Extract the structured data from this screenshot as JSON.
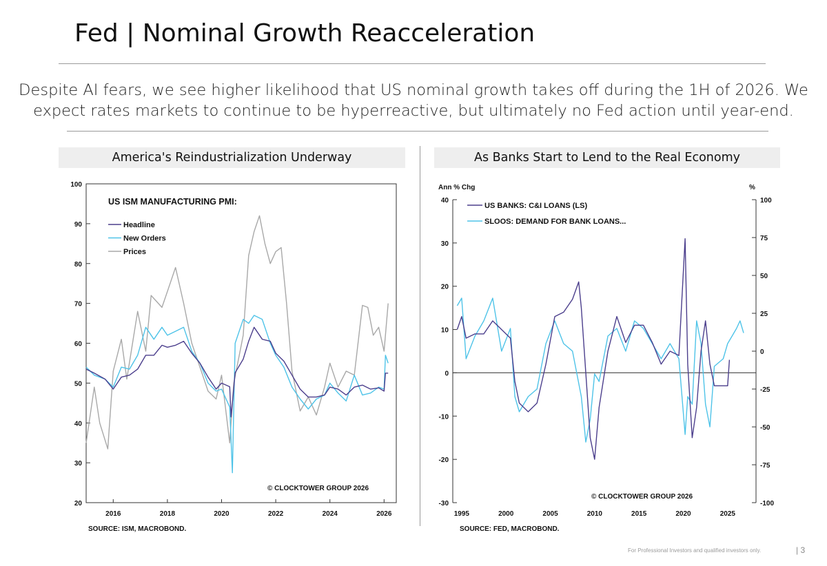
{
  "header": {
    "title": "Fed | Nominal Growth Reacceleration",
    "subtitle_line1": "Despite AI fears, we see higher likelihood that US nominal growth takes off during the 1H of 2026. We",
    "subtitle_line2": "expect rates markets to continue to be hyperreactive, but ultimately no Fed action until year-end."
  },
  "footer": {
    "disclaimer": "For Professional Investors and qualified investors only.",
    "page": "| 3"
  },
  "colors": {
    "headline": "#4b3e8c",
    "new_orders": "#4ec3e8",
    "prices": "#a8a8a8",
    "loans": "#4b3e8c",
    "sloos": "#4ec3e8"
  },
  "chart_data": [
    {
      "type": "line",
      "panel_title": "America's Reindustrialization Underway",
      "title": "US ISM MANUFACTURING PMI:",
      "xticks": [
        "2016",
        "2018",
        "2020",
        "2022",
        "2024",
        "2026"
      ],
      "xlim": [
        2015.0,
        2026.45
      ],
      "yticks": [
        "100",
        "90",
        "80",
        "70",
        "60",
        "50",
        "40",
        "30",
        "20"
      ],
      "ylim": [
        20,
        100
      ],
      "legend_placement": "top-left",
      "credit": "© CLOCKTOWER GROUP 2026",
      "source": "SOURCE: ISM, MACROBOND.",
      "series": [
        {
          "name": "Headline",
          "color": "#4b3e8c",
          "points": [
            [
              2015.0,
              53.5
            ],
            [
              2015.3,
              52.5
            ],
            [
              2015.7,
              51
            ],
            [
              2016.0,
              48.5
            ],
            [
              2016.3,
              51.5
            ],
            [
              2016.6,
              52
            ],
            [
              2016.9,
              53.5
            ],
            [
              2017.2,
              57
            ],
            [
              2017.5,
              57
            ],
            [
              2017.8,
              59.5
            ],
            [
              2018.0,
              59
            ],
            [
              2018.3,
              59.5
            ],
            [
              2018.6,
              60.5
            ],
            [
              2018.9,
              57.5
            ],
            [
              2019.2,
              55
            ],
            [
              2019.5,
              51.5
            ],
            [
              2019.8,
              48.5
            ],
            [
              2020.0,
              50
            ],
            [
              2020.3,
              49.1
            ],
            [
              2020.35,
              41.5
            ],
            [
              2020.5,
              52.6
            ],
            [
              2020.8,
              56
            ],
            [
              2021.0,
              60.5
            ],
            [
              2021.2,
              64
            ],
            [
              2021.5,
              61
            ],
            [
              2021.8,
              60.5
            ],
            [
              2022.0,
              57.5
            ],
            [
              2022.3,
              55.5
            ],
            [
              2022.6,
              52
            ],
            [
              2022.9,
              48.5
            ],
            [
              2023.2,
              46.5
            ],
            [
              2023.5,
              46.5
            ],
            [
              2023.8,
              47
            ],
            [
              2024.0,
              49
            ],
            [
              2024.3,
              48.5
            ],
            [
              2024.6,
              47
            ],
            [
              2024.9,
              49
            ],
            [
              2025.2,
              49.5
            ],
            [
              2025.5,
              48.5
            ],
            [
              2025.8,
              48.8
            ],
            [
              2026.0,
              48
            ],
            [
              2026.05,
              52.5
            ],
            [
              2026.15,
              52.5
            ]
          ]
        },
        {
          "name": "New Orders",
          "color": "#4ec3e8",
          "points": [
            [
              2015.0,
              54
            ],
            [
              2015.3,
              52
            ],
            [
              2015.7,
              51
            ],
            [
              2016.0,
              49
            ],
            [
              2016.3,
              54
            ],
            [
              2016.6,
              53.5
            ],
            [
              2016.9,
              57
            ],
            [
              2017.2,
              64
            ],
            [
              2017.5,
              61
            ],
            [
              2017.8,
              64
            ],
            [
              2018.0,
              62
            ],
            [
              2018.3,
              63
            ],
            [
              2018.6,
              64
            ],
            [
              2018.9,
              58
            ],
            [
              2019.2,
              55
            ],
            [
              2019.5,
              50
            ],
            [
              2019.8,
              48
            ],
            [
              2020.0,
              48.5
            ],
            [
              2020.3,
              44
            ],
            [
              2020.4,
              27.5
            ],
            [
              2020.5,
              60
            ],
            [
              2020.8,
              66
            ],
            [
              2021.0,
              65
            ],
            [
              2021.2,
              67
            ],
            [
              2021.5,
              66
            ],
            [
              2021.8,
              60
            ],
            [
              2022.0,
              57
            ],
            [
              2022.3,
              54
            ],
            [
              2022.6,
              49
            ],
            [
              2022.9,
              46
            ],
            [
              2023.2,
              43.5
            ],
            [
              2023.5,
              46
            ],
            [
              2023.8,
              47
            ],
            [
              2024.0,
              50
            ],
            [
              2024.3,
              47.5
            ],
            [
              2024.6,
              45.5
            ],
            [
              2024.9,
              52
            ],
            [
              2025.2,
              47
            ],
            [
              2025.5,
              47.5
            ],
            [
              2025.8,
              49
            ],
            [
              2026.0,
              48.5
            ],
            [
              2026.05,
              57
            ],
            [
              2026.15,
              55
            ]
          ]
        },
        {
          "name": "Prices",
          "color": "#a8a8a8",
          "points": [
            [
              2015.0,
              35
            ],
            [
              2015.3,
              49
            ],
            [
              2015.5,
              40
            ],
            [
              2015.8,
              33.5
            ],
            [
              2016.0,
              53
            ],
            [
              2016.3,
              61
            ],
            [
              2016.5,
              51
            ],
            [
              2016.9,
              68
            ],
            [
              2017.2,
              58
            ],
            [
              2017.4,
              72
            ],
            [
              2017.8,
              69
            ],
            [
              2018.0,
              73
            ],
            [
              2018.3,
              79
            ],
            [
              2018.6,
              70
            ],
            [
              2018.9,
              60
            ],
            [
              2019.2,
              54
            ],
            [
              2019.5,
              48
            ],
            [
              2019.8,
              46
            ],
            [
              2020.0,
              52
            ],
            [
              2020.3,
              35
            ],
            [
              2020.45,
              50
            ],
            [
              2020.8,
              62
            ],
            [
              2021.0,
              82
            ],
            [
              2021.2,
              88
            ],
            [
              2021.4,
              92
            ],
            [
              2021.6,
              85
            ],
            [
              2021.8,
              80
            ],
            [
              2022.0,
              83
            ],
            [
              2022.2,
              84
            ],
            [
              2022.4,
              70
            ],
            [
              2022.6,
              53
            ],
            [
              2022.9,
              43
            ],
            [
              2023.2,
              46.5
            ],
            [
              2023.5,
              42
            ],
            [
              2023.8,
              49
            ],
            [
              2024.0,
              55
            ],
            [
              2024.3,
              49
            ],
            [
              2024.6,
              53
            ],
            [
              2024.9,
              52
            ],
            [
              2025.2,
              69.5
            ],
            [
              2025.4,
              69
            ],
            [
              2025.6,
              62
            ],
            [
              2025.8,
              64
            ],
            [
              2026.0,
              58
            ],
            [
              2026.15,
              70
            ]
          ]
        }
      ]
    },
    {
      "type": "line",
      "panel_title": "As Banks Start to Lend to the Real Economy",
      "y_left_label": "Ann % Chg",
      "y_right_label": "%",
      "xticks": [
        "1995",
        "2000",
        "2005",
        "2010",
        "2015",
        "2020",
        "2025"
      ],
      "xlim": [
        1994.0,
        2028.2
      ],
      "left_yticks": [
        "40",
        "30",
        "20",
        "10",
        "0",
        "-10",
        "-20",
        "-30"
      ],
      "left_ylim": [
        -30,
        40
      ],
      "right_yticks": [
        "100",
        "75",
        "50",
        "25",
        "0",
        "-25",
        "-50",
        "-75",
        "-100"
      ],
      "right_ylim": [
        -100,
        100
      ],
      "legend_placement": "top-left",
      "credit": "© CLOCKTOWER GROUP 2026",
      "source": "SOURCE: FED, MACROBOND.",
      "series": [
        {
          "name": "US BANKS: C&I LOANS (LS)",
          "color": "#4b3e8c",
          "axis": "left",
          "points": [
            [
              1994.5,
              10
            ],
            [
              1995.0,
              13
            ],
            [
              1995.5,
              8
            ],
            [
              1996.5,
              9
            ],
            [
              1997.5,
              9
            ],
            [
              1998.5,
              12
            ],
            [
              1999.5,
              10
            ],
            [
              2000.5,
              8
            ],
            [
              2001.0,
              -2
            ],
            [
              2001.5,
              -7
            ],
            [
              2002.5,
              -9
            ],
            [
              2003.5,
              -7
            ],
            [
              2004.5,
              2
            ],
            [
              2005.5,
              13
            ],
            [
              2006.5,
              14
            ],
            [
              2007.5,
              17
            ],
            [
              2008.2,
              21
            ],
            [
              2008.5,
              15
            ],
            [
              2009.0,
              0
            ],
            [
              2009.5,
              -15
            ],
            [
              2010.0,
              -20
            ],
            [
              2010.5,
              -8
            ],
            [
              2011.5,
              5
            ],
            [
              2012.5,
              13
            ],
            [
              2013.5,
              7
            ],
            [
              2014.5,
              11
            ],
            [
              2015.5,
              11
            ],
            [
              2016.5,
              7
            ],
            [
              2017.5,
              2
            ],
            [
              2018.5,
              5
            ],
            [
              2019.5,
              4
            ],
            [
              2020.2,
              31
            ],
            [
              2020.5,
              2
            ],
            [
              2021.0,
              -15
            ],
            [
              2021.5,
              -8
            ],
            [
              2022.0,
              5
            ],
            [
              2022.5,
              12
            ],
            [
              2023.0,
              2
            ],
            [
              2023.5,
              -3
            ],
            [
              2024.5,
              -3
            ],
            [
              2025.0,
              -3
            ],
            [
              2025.2,
              3
            ]
          ]
        },
        {
          "name": "SLOOS: DEMAND FOR BANK LOANS...",
          "color": "#4ec3e8",
          "axis": "right",
          "points": [
            [
              1994.5,
              30
            ],
            [
              1995.0,
              35
            ],
            [
              1995.5,
              -5
            ],
            [
              1996.5,
              10
            ],
            [
              1997.5,
              20
            ],
            [
              1998.5,
              35
            ],
            [
              1999.5,
              0
            ],
            [
              2000.5,
              15
            ],
            [
              2001.0,
              -30
            ],
            [
              2001.5,
              -40
            ],
            [
              2002.5,
              -30
            ],
            [
              2003.5,
              -25
            ],
            [
              2004.5,
              5
            ],
            [
              2005.5,
              20
            ],
            [
              2006.5,
              5
            ],
            [
              2007.5,
              0
            ],
            [
              2008.5,
              -30
            ],
            [
              2009.0,
              -60
            ],
            [
              2009.5,
              -45
            ],
            [
              2010.0,
              -15
            ],
            [
              2010.5,
              -20
            ],
            [
              2011.5,
              10
            ],
            [
              2012.5,
              15
            ],
            [
              2013.5,
              0
            ],
            [
              2014.5,
              20
            ],
            [
              2015.5,
              15
            ],
            [
              2016.5,
              5
            ],
            [
              2017.5,
              -5
            ],
            [
              2018.5,
              5
            ],
            [
              2019.5,
              -5
            ],
            [
              2020.2,
              -55
            ],
            [
              2020.5,
              -30
            ],
            [
              2021.0,
              -35
            ],
            [
              2021.5,
              20
            ],
            [
              2022.0,
              5
            ],
            [
              2022.5,
              -35
            ],
            [
              2023.0,
              -50
            ],
            [
              2023.5,
              -10
            ],
            [
              2024.5,
              -5
            ],
            [
              2025.0,
              5
            ],
            [
              2025.5,
              10
            ],
            [
              2026.0,
              15
            ],
            [
              2026.4,
              20
            ],
            [
              2026.8,
              12
            ]
          ]
        }
      ]
    }
  ]
}
